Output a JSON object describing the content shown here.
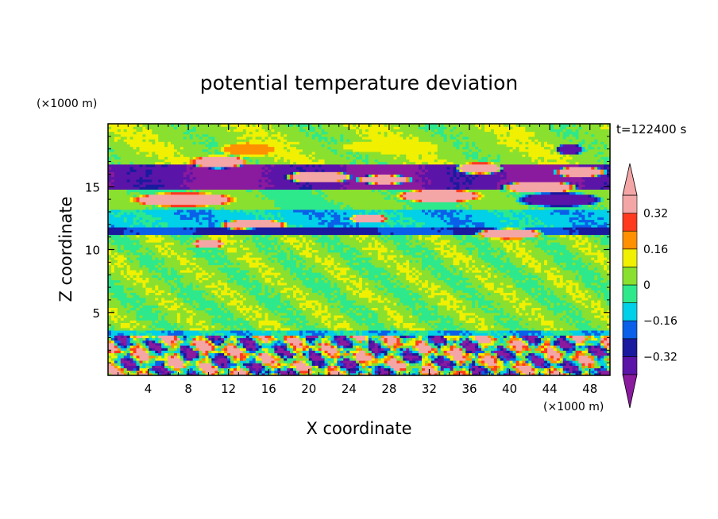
{
  "chart_data": {
    "type": "heatmap",
    "title": "potential temperature deviation",
    "time_label": "t=122400 s",
    "xlabel": "X coordinate",
    "ylabel": "Z coordinate",
    "x_unit": "(×1000 m)",
    "y_unit": "(×1000 m)",
    "xlim": [
      0,
      50
    ],
    "ylim": [
      0,
      20
    ],
    "x_ticks": [
      4,
      8,
      12,
      16,
      20,
      24,
      28,
      32,
      36,
      40,
      44,
      48
    ],
    "x_tick_labels": [
      "4",
      "8",
      "12",
      "16",
      "20",
      "24",
      "28",
      "32",
      "36",
      "40",
      "44",
      "48"
    ],
    "y_ticks": [
      5,
      10,
      15
    ],
    "y_tick_labels": [
      "5",
      "10",
      "15"
    ],
    "colorbar": {
      "levels": [
        -0.4,
        -0.32,
        -0.24,
        -0.16,
        -0.08,
        0,
        0.08,
        0.16,
        0.24,
        0.32,
        0.4
      ],
      "labels": [
        "0.32",
        "0.16",
        "0",
        "−0.16",
        "−0.32"
      ],
      "label_values": [
        0.32,
        0.16,
        0,
        -0.16,
        -0.32
      ],
      "colors": [
        "#8a1a9e",
        "#5a14a8",
        "#1a1a9e",
        "#0a60e8",
        "#00d0e8",
        "#2ee88c",
        "#8ae02e",
        "#f0f000",
        "#ff9000",
        "#ff3a1e",
        "#f4a6a6"
      ],
      "extend": "both"
    },
    "bands": [
      {
        "z0": 0,
        "z1": 3.3,
        "base_level": 0.0
      },
      {
        "z0": 3.3,
        "z1": 3.6,
        "base_level": -0.12
      },
      {
        "z0": 3.6,
        "z1": 11.2,
        "base_level": 0.03
      },
      {
        "z0": 11.2,
        "z1": 11.9,
        "base_level": -0.24
      },
      {
        "z0": 11.9,
        "z1": 13.3,
        "base_level": -0.12
      },
      {
        "z0": 13.3,
        "z1": 14.8,
        "base_level": 0.0
      },
      {
        "z0": 14.8,
        "z1": 16.8,
        "base_level": -0.4
      },
      {
        "z0": 16.8,
        "z1": 20,
        "base_level": 0.05
      }
    ],
    "warm_patches": [
      {
        "x": 7.5,
        "z": 14.0,
        "rx": 5.5,
        "rz": 0.6,
        "value": 0.45
      },
      {
        "x": 14.5,
        "z": 12.0,
        "rx": 3.5,
        "rz": 0.45,
        "value": 0.45
      },
      {
        "x": 26.0,
        "z": 12.5,
        "rx": 2.0,
        "rz": 0.4,
        "value": 0.45
      },
      {
        "x": 33.0,
        "z": 14.3,
        "rx": 4.5,
        "rz": 0.55,
        "value": 0.45
      },
      {
        "x": 43.0,
        "z": 15.0,
        "rx": 4.0,
        "rz": 0.5,
        "value": 0.45
      },
      {
        "x": 40.0,
        "z": 11.3,
        "rx": 3.5,
        "rz": 0.45,
        "value": 0.45
      },
      {
        "x": 10.0,
        "z": 10.5,
        "rx": 1.8,
        "rz": 0.35,
        "value": 0.45
      },
      {
        "x": 11.0,
        "z": 17.0,
        "rx": 3.0,
        "rz": 0.55,
        "value": 0.4
      },
      {
        "x": 21.0,
        "z": 15.8,
        "rx": 3.5,
        "rz": 0.5,
        "value": 0.45
      },
      {
        "x": 27.5,
        "z": 15.6,
        "rx": 3.0,
        "rz": 0.4,
        "value": 0.45
      },
      {
        "x": 37.0,
        "z": 16.5,
        "rx": 2.5,
        "rz": 0.5,
        "value": 0.4
      },
      {
        "x": 47.0,
        "z": 16.2,
        "rx": 2.8,
        "rz": 0.45,
        "value": 0.45
      },
      {
        "x": 28.0,
        "z": 18.2,
        "rx": 6.0,
        "rz": 0.6,
        "value": 0.1
      },
      {
        "x": 14.0,
        "z": 18.0,
        "rx": 3.0,
        "rz": 0.6,
        "value": 0.2
      }
    ],
    "cold_patches": [
      {
        "x": 46.0,
        "z": 18.0,
        "rx": 1.5,
        "rz": 0.5,
        "value": -0.35
      },
      {
        "x": 45.0,
        "z": 14.0,
        "rx": 4.5,
        "rz": 0.6,
        "value": -0.4
      },
      {
        "x": 18.0,
        "z": 11.5,
        "rx": 6.0,
        "rz": 0.4,
        "value": -0.28
      }
    ]
  }
}
